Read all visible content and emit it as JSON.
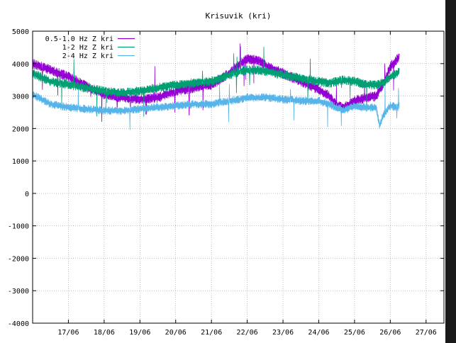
{
  "chart_data": {
    "type": "line",
    "title": "Krisuvik (kri)",
    "xlabel": "",
    "ylabel": "",
    "ylim": [
      -4000,
      5000
    ],
    "yticks": [
      -4000,
      -3000,
      -2000,
      -1000,
      0,
      1000,
      2000,
      3000,
      4000,
      5000
    ],
    "xlim": [
      16.0,
      27.5
    ],
    "xticks": [
      {
        "value": 17,
        "label": "17/06"
      },
      {
        "value": 18,
        "label": "18/06"
      },
      {
        "value": 19,
        "label": "19/06"
      },
      {
        "value": 20,
        "label": "20/06"
      },
      {
        "value": 21,
        "label": "21/06"
      },
      {
        "value": 22,
        "label": "22/06"
      },
      {
        "value": 23,
        "label": "23/06"
      },
      {
        "value": 24,
        "label": "24/06"
      },
      {
        "value": 25,
        "label": "25/06"
      },
      {
        "value": 26,
        "label": "26/06"
      },
      {
        "value": 27,
        "label": "27/06"
      }
    ],
    "grid": true,
    "legend_position": "top-left",
    "series": [
      {
        "name": "0.5-1.0 Hz Z kri",
        "color": "#9400d3",
        "x": [
          16.0,
          16.5,
          17.0,
          17.5,
          18.0,
          18.5,
          19.0,
          19.5,
          20.0,
          20.5,
          21.0,
          21.5,
          21.8,
          22.0,
          22.3,
          22.6,
          23.0,
          23.5,
          24.0,
          24.3,
          24.5,
          24.7,
          25.0,
          25.3,
          25.6,
          25.8,
          26.0,
          26.2,
          26.25
        ],
        "y": [
          4000,
          3800,
          3600,
          3300,
          3050,
          2950,
          2900,
          2950,
          3150,
          3250,
          3350,
          3700,
          4000,
          4150,
          4100,
          3900,
          3700,
          3450,
          3200,
          3000,
          2700,
          2650,
          2850,
          2950,
          3000,
          3350,
          3900,
          4150,
          4200
        ],
        "spread": 160
      },
      {
        "name": "1-2 Hz Z kri",
        "color": "#009e73",
        "x": [
          16.0,
          16.5,
          17.0,
          17.5,
          18.0,
          18.5,
          19.0,
          19.5,
          20.0,
          20.5,
          21.0,
          21.5,
          21.8,
          22.0,
          22.3,
          22.6,
          23.0,
          23.5,
          24.0,
          24.3,
          24.5,
          24.7,
          25.0,
          25.3,
          25.6,
          25.8,
          26.0,
          26.2,
          26.25
        ],
        "y": [
          3700,
          3450,
          3350,
          3250,
          3150,
          3100,
          3150,
          3250,
          3350,
          3400,
          3450,
          3650,
          3750,
          3800,
          3800,
          3750,
          3650,
          3550,
          3450,
          3400,
          3450,
          3500,
          3450,
          3350,
          3350,
          3400,
          3600,
          3700,
          3750
        ],
        "spread": 150
      },
      {
        "name": "2-4 Hz Z kri",
        "color": "#56b4e9",
        "x": [
          16.0,
          16.5,
          17.0,
          17.5,
          18.0,
          18.5,
          19.0,
          19.5,
          20.0,
          20.5,
          21.0,
          21.5,
          21.8,
          22.0,
          22.3,
          22.6,
          23.0,
          23.5,
          24.0,
          24.3,
          24.5,
          24.7,
          25.0,
          25.3,
          25.6,
          25.7,
          25.8,
          26.0,
          26.2,
          26.25
        ],
        "y": [
          3050,
          2750,
          2650,
          2600,
          2550,
          2550,
          2600,
          2650,
          2700,
          2750,
          2750,
          2850,
          2900,
          2950,
          2950,
          2950,
          2900,
          2850,
          2850,
          2750,
          2650,
          2550,
          2700,
          2650,
          2650,
          2100,
          2400,
          2700,
          2650,
          2700
        ],
        "spread": 130
      }
    ]
  }
}
